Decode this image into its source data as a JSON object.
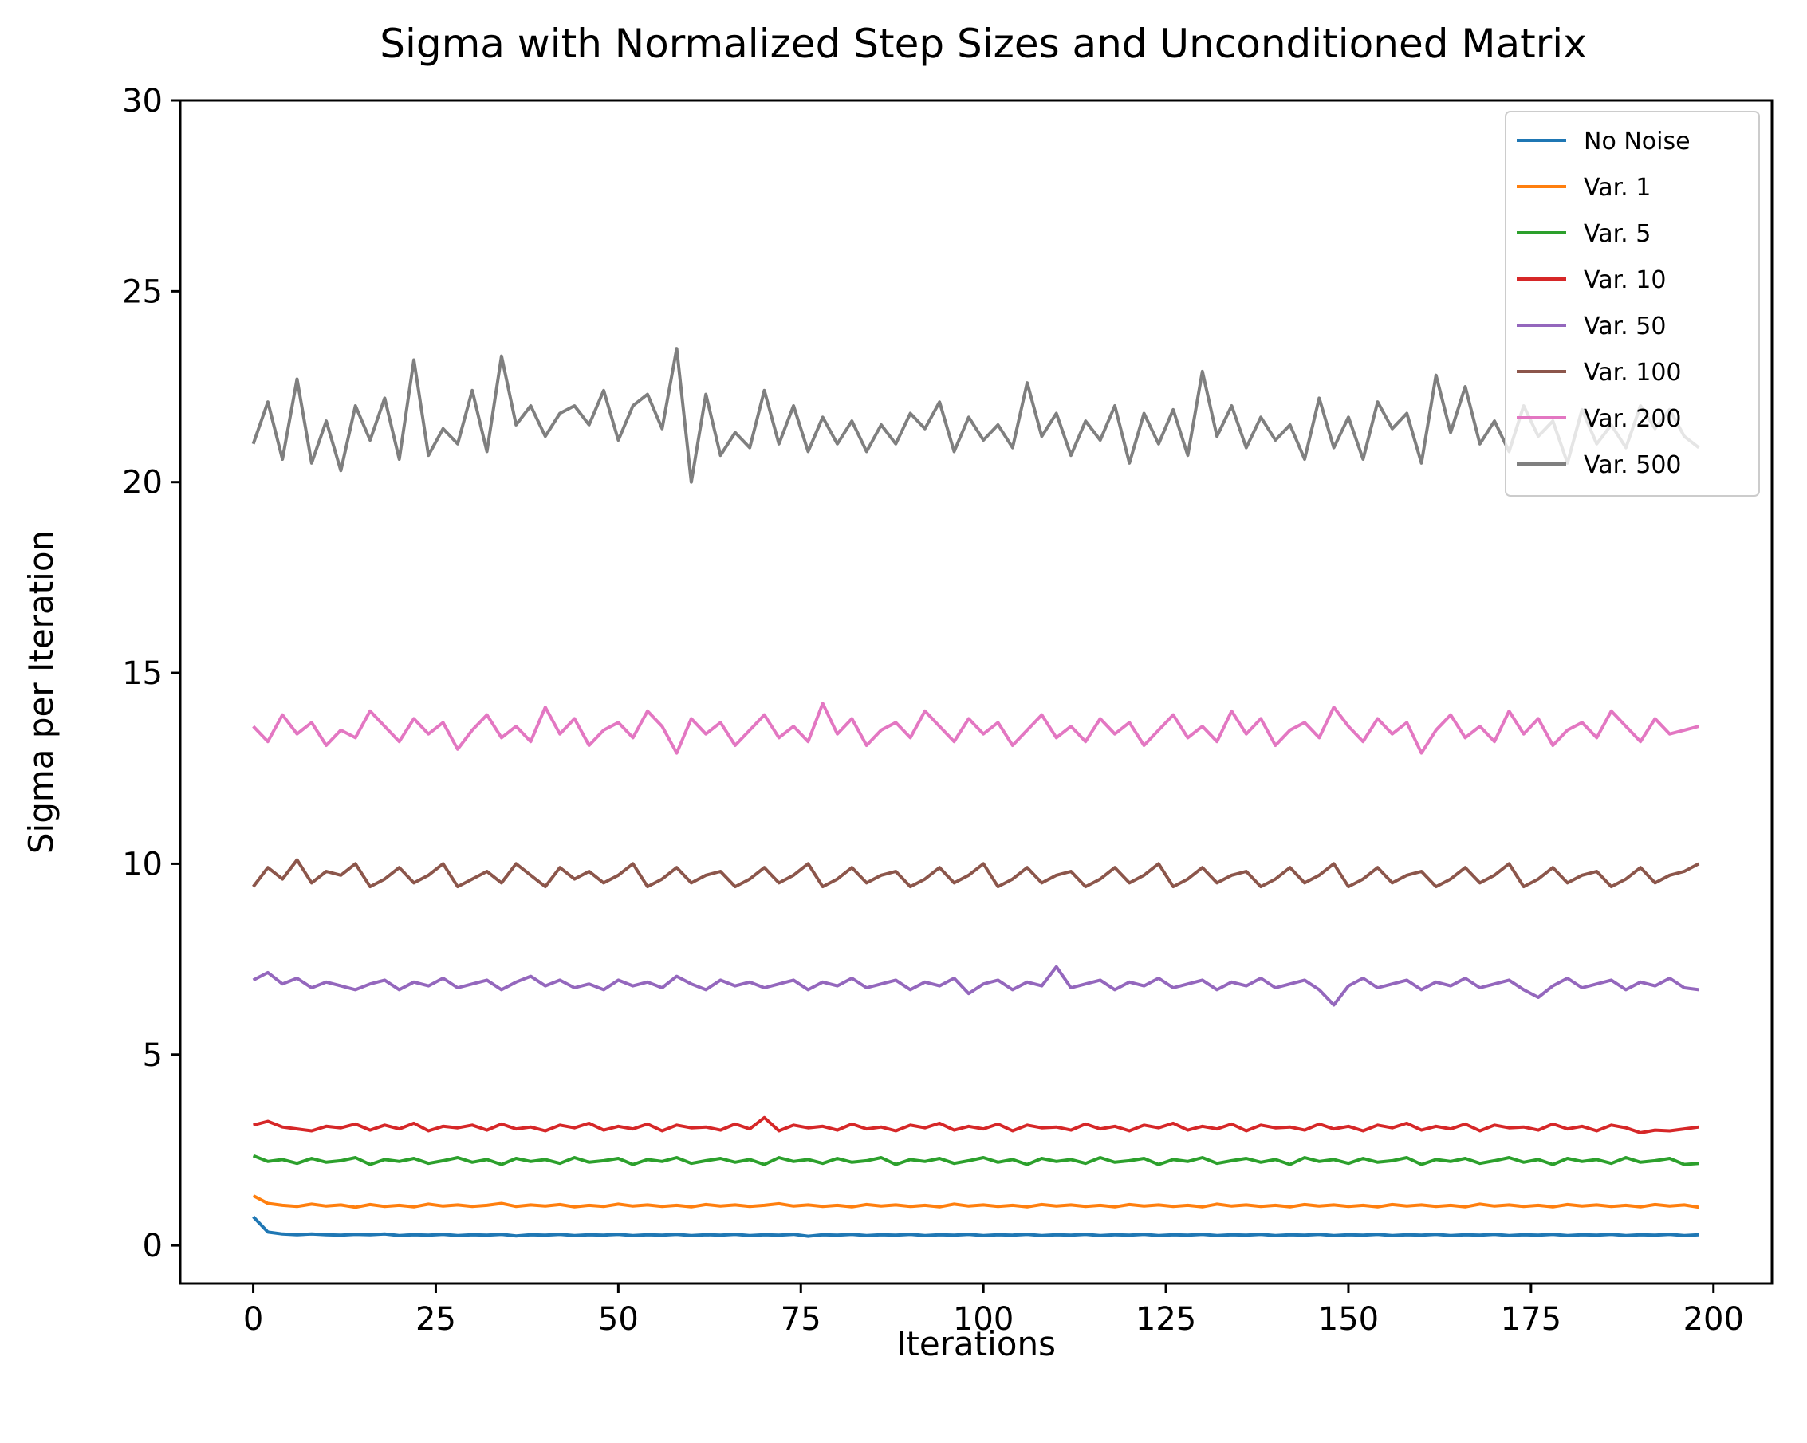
{
  "chart_data": {
    "type": "line",
    "title": "Sigma with Normalized Step Sizes and Unconditioned Matrix",
    "xlabel": "Iterations",
    "ylabel": "Sigma per Iteration",
    "xlim": [
      -10,
      208
    ],
    "ylim": [
      -1,
      30
    ],
    "xticks": [
      0,
      25,
      50,
      75,
      100,
      125,
      150,
      175,
      200
    ],
    "yticks": [
      0,
      5,
      10,
      15,
      20,
      25,
      30
    ],
    "grid": false,
    "legend_position": "top-right",
    "x_start": 0,
    "x_step": 2,
    "series": [
      {
        "name": "No Noise",
        "color": "#1f77b4",
        "values": [
          0.75,
          0.35,
          0.3,
          0.28,
          0.3,
          0.28,
          0.27,
          0.29,
          0.28,
          0.3,
          0.26,
          0.28,
          0.27,
          0.29,
          0.26,
          0.28,
          0.27,
          0.29,
          0.25,
          0.28,
          0.27,
          0.29,
          0.26,
          0.28,
          0.27,
          0.29,
          0.26,
          0.28,
          0.27,
          0.29,
          0.26,
          0.28,
          0.27,
          0.29,
          0.26,
          0.28,
          0.27,
          0.29,
          0.24,
          0.28,
          0.27,
          0.29,
          0.26,
          0.28,
          0.27,
          0.29,
          0.26,
          0.28,
          0.27,
          0.29,
          0.26,
          0.28,
          0.27,
          0.29,
          0.26,
          0.28,
          0.27,
          0.29,
          0.26,
          0.28,
          0.27,
          0.29,
          0.26,
          0.28,
          0.27,
          0.29,
          0.26,
          0.28,
          0.27,
          0.29,
          0.26,
          0.28,
          0.27,
          0.29,
          0.26,
          0.28,
          0.27,
          0.29,
          0.26,
          0.28,
          0.27,
          0.29,
          0.26,
          0.28,
          0.27,
          0.29,
          0.26,
          0.28,
          0.27,
          0.29,
          0.26,
          0.28,
          0.27,
          0.29,
          0.26,
          0.28,
          0.27,
          0.29,
          0.26,
          0.28
        ]
      },
      {
        "name": "Var. 1",
        "color": "#ff7f0e",
        "values": [
          1.3,
          1.1,
          1.05,
          1.02,
          1.08,
          1.03,
          1.06,
          1.0,
          1.07,
          1.02,
          1.05,
          1.01,
          1.08,
          1.03,
          1.06,
          1.02,
          1.05,
          1.1,
          1.02,
          1.06,
          1.03,
          1.07,
          1.01,
          1.05,
          1.02,
          1.08,
          1.03,
          1.06,
          1.02,
          1.05,
          1.01,
          1.07,
          1.03,
          1.06,
          1.02,
          1.05,
          1.09,
          1.03,
          1.06,
          1.02,
          1.05,
          1.01,
          1.07,
          1.03,
          1.06,
          1.02,
          1.05,
          1.01,
          1.08,
          1.03,
          1.06,
          1.02,
          1.05,
          1.01,
          1.07,
          1.03,
          1.06,
          1.02,
          1.05,
          1.01,
          1.07,
          1.03,
          1.06,
          1.02,
          1.05,
          1.01,
          1.08,
          1.03,
          1.06,
          1.02,
          1.05,
          1.01,
          1.07,
          1.03,
          1.06,
          1.02,
          1.05,
          1.01,
          1.07,
          1.03,
          1.06,
          1.02,
          1.05,
          1.01,
          1.08,
          1.03,
          1.06,
          1.02,
          1.05,
          1.01,
          1.07,
          1.03,
          1.06,
          1.02,
          1.05,
          1.01,
          1.07,
          1.03,
          1.06,
          1.0
        ]
      },
      {
        "name": "Var. 5",
        "color": "#2ca02c",
        "values": [
          2.35,
          2.2,
          2.25,
          2.15,
          2.28,
          2.18,
          2.22,
          2.3,
          2.12,
          2.25,
          2.2,
          2.28,
          2.15,
          2.22,
          2.3,
          2.18,
          2.25,
          2.12,
          2.28,
          2.2,
          2.25,
          2.15,
          2.3,
          2.18,
          2.22,
          2.28,
          2.12,
          2.25,
          2.2,
          2.3,
          2.15,
          2.22,
          2.28,
          2.18,
          2.25,
          2.12,
          2.3,
          2.2,
          2.25,
          2.15,
          2.28,
          2.18,
          2.22,
          2.3,
          2.12,
          2.25,
          2.2,
          2.28,
          2.15,
          2.22,
          2.3,
          2.18,
          2.25,
          2.12,
          2.28,
          2.2,
          2.25,
          2.15,
          2.3,
          2.18,
          2.22,
          2.28,
          2.12,
          2.25,
          2.2,
          2.3,
          2.15,
          2.22,
          2.28,
          2.18,
          2.25,
          2.12,
          2.3,
          2.2,
          2.25,
          2.15,
          2.28,
          2.18,
          2.22,
          2.3,
          2.12,
          2.25,
          2.2,
          2.28,
          2.15,
          2.22,
          2.3,
          2.18,
          2.25,
          2.12,
          2.28,
          2.2,
          2.25,
          2.15,
          2.3,
          2.18,
          2.22,
          2.28,
          2.12,
          2.15
        ]
      },
      {
        "name": "Var. 10",
        "color": "#d62728",
        "values": [
          3.15,
          3.25,
          3.1,
          3.05,
          3.0,
          3.12,
          3.08,
          3.18,
          3.02,
          3.15,
          3.05,
          3.2,
          3.0,
          3.12,
          3.08,
          3.15,
          3.02,
          3.18,
          3.05,
          3.1,
          3.0,
          3.15,
          3.08,
          3.2,
          3.02,
          3.12,
          3.05,
          3.18,
          3.0,
          3.15,
          3.08,
          3.1,
          3.02,
          3.18,
          3.05,
          3.35,
          3.0,
          3.15,
          3.08,
          3.12,
          3.02,
          3.18,
          3.05,
          3.1,
          3.0,
          3.15,
          3.08,
          3.2,
          3.02,
          3.12,
          3.05,
          3.18,
          3.0,
          3.15,
          3.08,
          3.1,
          3.02,
          3.18,
          3.05,
          3.12,
          3.0,
          3.15,
          3.08,
          3.2,
          3.02,
          3.12,
          3.05,
          3.18,
          3.0,
          3.15,
          3.08,
          3.1,
          3.02,
          3.18,
          3.05,
          3.12,
          3.0,
          3.15,
          3.08,
          3.2,
          3.02,
          3.12,
          3.05,
          3.18,
          3.0,
          3.15,
          3.08,
          3.1,
          3.02,
          3.18,
          3.05,
          3.12,
          3.0,
          3.15,
          3.08,
          2.95,
          3.02,
          3.0,
          3.05,
          3.1
        ]
      },
      {
        "name": "Var. 50",
        "color": "#9467bd",
        "values": [
          6.95,
          7.15,
          6.85,
          7.0,
          6.75,
          6.9,
          6.8,
          6.7,
          6.85,
          6.95,
          6.7,
          6.9,
          6.8,
          7.0,
          6.75,
          6.85,
          6.95,
          6.7,
          6.9,
          7.05,
          6.8,
          6.95,
          6.75,
          6.85,
          6.7,
          6.95,
          6.8,
          6.9,
          6.75,
          7.05,
          6.85,
          6.7,
          6.95,
          6.8,
          6.9,
          6.75,
          6.85,
          6.95,
          6.7,
          6.9,
          6.8,
          7.0,
          6.75,
          6.85,
          6.95,
          6.7,
          6.9,
          6.8,
          7.0,
          6.6,
          6.85,
          6.95,
          6.7,
          6.9,
          6.8,
          7.3,
          6.75,
          6.85,
          6.95,
          6.7,
          6.9,
          6.8,
          7.0,
          6.75,
          6.85,
          6.95,
          6.7,
          6.9,
          6.8,
          7.0,
          6.75,
          6.85,
          6.95,
          6.7,
          6.3,
          6.8,
          7.0,
          6.75,
          6.85,
          6.95,
          6.7,
          6.9,
          6.8,
          7.0,
          6.75,
          6.85,
          6.95,
          6.7,
          6.5,
          6.8,
          7.0,
          6.75,
          6.85,
          6.95,
          6.7,
          6.9,
          6.8,
          7.0,
          6.75,
          6.7
        ]
      },
      {
        "name": "Var. 100",
        "color": "#8c564b",
        "values": [
          9.4,
          9.9,
          9.6,
          10.1,
          9.5,
          9.8,
          9.7,
          10.0,
          9.4,
          9.6,
          9.9,
          9.5,
          9.7,
          10.0,
          9.4,
          9.6,
          9.8,
          9.5,
          10.0,
          9.7,
          9.4,
          9.9,
          9.6,
          9.8,
          9.5,
          9.7,
          10.0,
          9.4,
          9.6,
          9.9,
          9.5,
          9.7,
          9.8,
          9.4,
          9.6,
          9.9,
          9.5,
          9.7,
          10.0,
          9.4,
          9.6,
          9.9,
          9.5,
          9.7,
          9.8,
          9.4,
          9.6,
          9.9,
          9.5,
          9.7,
          10.0,
          9.4,
          9.6,
          9.9,
          9.5,
          9.7,
          9.8,
          9.4,
          9.6,
          9.9,
          9.5,
          9.7,
          10.0,
          9.4,
          9.6,
          9.9,
          9.5,
          9.7,
          9.8,
          9.4,
          9.6,
          9.9,
          9.5,
          9.7,
          10.0,
          9.4,
          9.6,
          9.9,
          9.5,
          9.7,
          9.8,
          9.4,
          9.6,
          9.9,
          9.5,
          9.7,
          10.0,
          9.4,
          9.6,
          9.9,
          9.5,
          9.7,
          9.8,
          9.4,
          9.6,
          9.9,
          9.5,
          9.7,
          9.8,
          10.0
        ]
      },
      {
        "name": "Var. 200",
        "color": "#e377c2",
        "values": [
          13.6,
          13.2,
          13.9,
          13.4,
          13.7,
          13.1,
          13.5,
          13.3,
          14.0,
          13.6,
          13.2,
          13.8,
          13.4,
          13.7,
          13.0,
          13.5,
          13.9,
          13.3,
          13.6,
          13.2,
          14.1,
          13.4,
          13.8,
          13.1,
          13.5,
          13.7,
          13.3,
          14.0,
          13.6,
          12.9,
          13.8,
          13.4,
          13.7,
          13.1,
          13.5,
          13.9,
          13.3,
          13.6,
          13.2,
          14.2,
          13.4,
          13.8,
          13.1,
          13.5,
          13.7,
          13.3,
          14.0,
          13.6,
          13.2,
          13.8,
          13.4,
          13.7,
          13.1,
          13.5,
          13.9,
          13.3,
          13.6,
          13.2,
          13.8,
          13.4,
          13.7,
          13.1,
          13.5,
          13.9,
          13.3,
          13.6,
          13.2,
          14.0,
          13.4,
          13.8,
          13.1,
          13.5,
          13.7,
          13.3,
          14.1,
          13.6,
          13.2,
          13.8,
          13.4,
          13.7,
          12.9,
          13.5,
          13.9,
          13.3,
          13.6,
          13.2,
          14.0,
          13.4,
          13.8,
          13.1,
          13.5,
          13.7,
          13.3,
          14.0,
          13.6,
          13.2,
          13.8,
          13.4,
          13.5,
          13.6
        ]
      },
      {
        "name": "Var. 500",
        "color": "#7f7f7f",
        "values": [
          21.0,
          22.1,
          20.6,
          22.7,
          20.5,
          21.6,
          20.3,
          22.0,
          21.1,
          22.2,
          20.6,
          23.2,
          20.7,
          21.4,
          21.0,
          22.4,
          20.8,
          23.3,
          21.5,
          22.0,
          21.2,
          21.8,
          22.0,
          21.5,
          22.4,
          21.1,
          22.0,
          22.3,
          21.4,
          23.5,
          20.0,
          22.3,
          20.7,
          21.3,
          20.9,
          22.4,
          21.0,
          22.0,
          20.8,
          21.7,
          21.0,
          21.6,
          20.8,
          21.5,
          21.0,
          21.8,
          21.4,
          22.1,
          20.8,
          21.7,
          21.1,
          21.5,
          20.9,
          22.6,
          21.2,
          21.8,
          20.7,
          21.6,
          21.1,
          22.0,
          20.5,
          21.8,
          21.0,
          21.9,
          20.7,
          22.9,
          21.2,
          22.0,
          20.9,
          21.7,
          21.1,
          21.5,
          20.6,
          22.2,
          20.9,
          21.7,
          20.6,
          22.1,
          21.4,
          21.8,
          20.5,
          22.8,
          21.3,
          22.5,
          21.0,
          21.6,
          20.8,
          22.0,
          21.2,
          21.6,
          20.5,
          21.9,
          21.0,
          21.5,
          20.9,
          22.0,
          21.4,
          21.9,
          21.2,
          20.9
        ]
      }
    ]
  }
}
